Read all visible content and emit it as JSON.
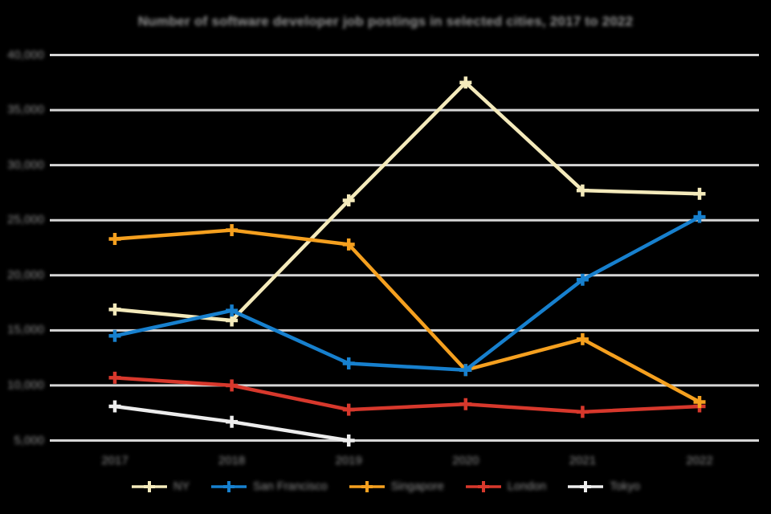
{
  "title": "Number of software developer job postings in selected cities, 2017 to 2022",
  "chart_data": {
    "type": "line",
    "x_categories": [
      "2017",
      "2018",
      "2019",
      "2020",
      "2021",
      "2022"
    ],
    "series": [
      {
        "name": "NY",
        "color": "#F4EABB",
        "values": [
          16900,
          15900,
          26800,
          37500,
          27700,
          27400
        ]
      },
      {
        "name": "San Francisco",
        "color": "#1780CE",
        "values": [
          14500,
          16800,
          12000,
          11400,
          19600,
          25300
        ]
      },
      {
        "name": "Singapore",
        "color": "#F5A01F",
        "values": [
          23300,
          24100,
          22800,
          11400,
          14200,
          8500
        ]
      },
      {
        "name": "London",
        "color": "#D7382C",
        "values": [
          10700,
          10000,
          7800,
          8300,
          7600,
          8100
        ]
      },
      {
        "name": "Tokyo",
        "color": "#EDEDED",
        "values": [
          8100,
          6700,
          5000,
          null,
          null,
          null
        ]
      }
    ],
    "ylim": [
      5000,
      40000
    ],
    "y_ticks": [
      "40,000",
      "35,000",
      "30,000",
      "25,000",
      "20,000",
      "15,000",
      "10,000",
      "5,000"
    ],
    "xlabel": "",
    "ylabel": "",
    "grid": true,
    "legend_position": "bottom",
    "marker": "plus"
  },
  "colors": {
    "background": "#000000",
    "gridline": "#D6D6D6",
    "text": "#8F8F8F"
  }
}
